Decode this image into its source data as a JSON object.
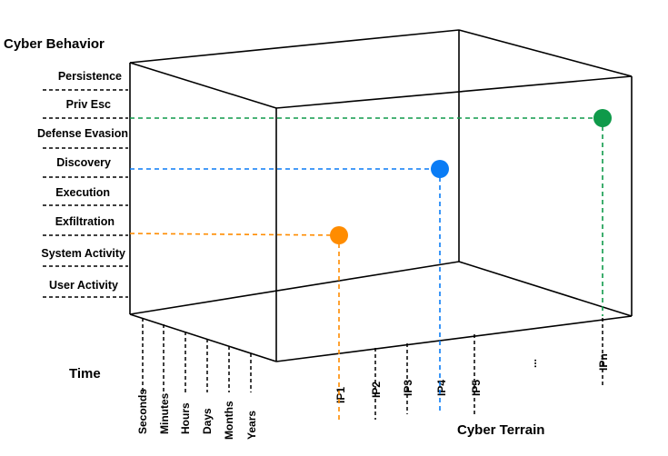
{
  "titles": {
    "behavior_axis": "Cyber Behavior",
    "time_axis": "Time",
    "terrain_axis": "Cyber Terrain"
  },
  "behavior_levels": [
    "Persistence",
    "Priv Esc",
    "Defense Evasion",
    "Discovery",
    "Execution",
    "Exfiltration",
    "System Activity",
    "User Activity"
  ],
  "time_scales": [
    "Seconds",
    "Minutes",
    "Hours",
    "Days",
    "Months",
    "Years"
  ],
  "terrain_hosts": [
    "IP1",
    "IP2",
    "IP3",
    "IP4",
    "IP5",
    "...",
    "IPn"
  ],
  "points": [
    {
      "behavior": "Exfiltration",
      "terrain": "IP1",
      "color": "#ff8c00"
    },
    {
      "behavior": "Discovery",
      "terrain": "IP4",
      "color": "#0a7cf5"
    },
    {
      "behavior": "Priv Esc",
      "terrain": "IPn",
      "color": "#0f9a4a"
    }
  ]
}
